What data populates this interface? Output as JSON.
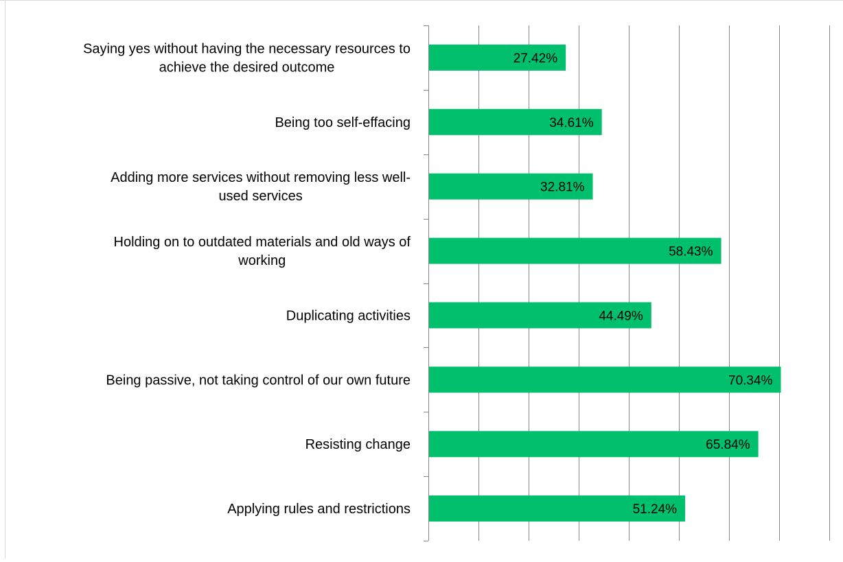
{
  "chart_data": {
    "type": "bar",
    "orientation": "horizontal",
    "categories": [
      "Saying yes without having the necessary resources to achieve the desired outcome",
      "Being too self-effacing",
      "Adding more services without removing less well-used services",
      "Holding on to outdated materials and old ways of working",
      "Duplicating activities",
      "Being passive, not taking control of our own future",
      "Resisting change",
      "Applying rules and restrictions"
    ],
    "category_lines": [
      [
        "Saying yes without having the necessary resources to",
        "achieve the desired outcome"
      ],
      [
        "Being too self-effacing"
      ],
      [
        "Adding more services without removing less well-",
        "used services"
      ],
      [
        "Holding on to outdated materials and old ways of",
        "working"
      ],
      [
        "Duplicating activities"
      ],
      [
        "Being passive, not taking control of our own future"
      ],
      [
        "Resisting change"
      ],
      [
        "Applying rules and restrictions"
      ]
    ],
    "values": [
      27.42,
      34.61,
      32.81,
      58.43,
      44.49,
      70.34,
      65.84,
      51.24
    ],
    "data_labels": [
      "27.42%",
      "34.61%",
      "32.81%",
      "58.43%",
      "44.49%",
      "70.34%",
      "65.84%",
      "51.24%"
    ],
    "xlim": [
      0,
      80
    ],
    "grid_step": 10,
    "xlabel": "",
    "ylabel": "",
    "title": "",
    "grid": true,
    "legend": "none",
    "bar_color": "#00c06e",
    "grid_color": "#888888",
    "label_color": "#000000"
  }
}
